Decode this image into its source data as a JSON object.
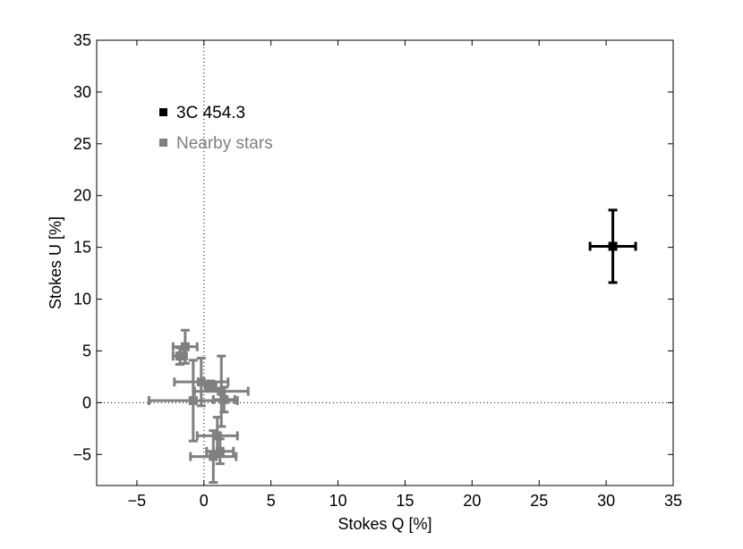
{
  "chart_data": {
    "type": "scatter",
    "xlabel": "Stokes Q [%]",
    "ylabel": "Stokes U [%]",
    "xlim": [
      -8,
      35
    ],
    "ylim": [
      -8,
      35
    ],
    "xticks": [
      -5,
      0,
      5,
      10,
      15,
      20,
      25,
      30,
      35
    ],
    "yticks": [
      -5,
      0,
      5,
      10,
      15,
      20,
      25,
      30,
      35
    ],
    "grid": false,
    "reference_lines": {
      "x": 0,
      "y": 0,
      "style": "dotted"
    },
    "legend_placement": "top-left",
    "series": [
      {
        "name": "3C 454.3",
        "color": "#000000",
        "marker": "square",
        "points": [
          {
            "x": 30.5,
            "y": 15.1,
            "xerr": 1.7,
            "yerr": 3.5
          }
        ]
      },
      {
        "name": "Nearby stars",
        "color": "#808080",
        "marker": "square",
        "points": [
          {
            "x": -1.4,
            "y": 5.4,
            "xerr": 0.9,
            "yerr": 1.6
          },
          {
            "x": -1.8,
            "y": 4.5,
            "xerr": 0.5,
            "yerr": 0.8
          },
          {
            "x": -0.8,
            "y": 0.2,
            "xerr": 3.3,
            "yerr": 3.9
          },
          {
            "x": -0.2,
            "y": 2.0,
            "xerr": 2.0,
            "yerr": 2.3
          },
          {
            "x": 0.5,
            "y": 1.6,
            "xerr": 0.4,
            "yerr": 0.5
          },
          {
            "x": 1.3,
            "y": 1.1,
            "xerr": 2.0,
            "yerr": 3.4
          },
          {
            "x": 1.5,
            "y": 0.3,
            "xerr": 0.8,
            "yerr": 1.2
          },
          {
            "x": 1.0,
            "y": -3.2,
            "xerr": 1.5,
            "yerr": 1.8
          },
          {
            "x": 1.2,
            "y": -4.7,
            "xerr": 1.0,
            "yerr": 1.2
          },
          {
            "x": 0.7,
            "y": -5.2,
            "xerr": 1.7,
            "yerr": 2.5
          }
        ]
      }
    ]
  }
}
